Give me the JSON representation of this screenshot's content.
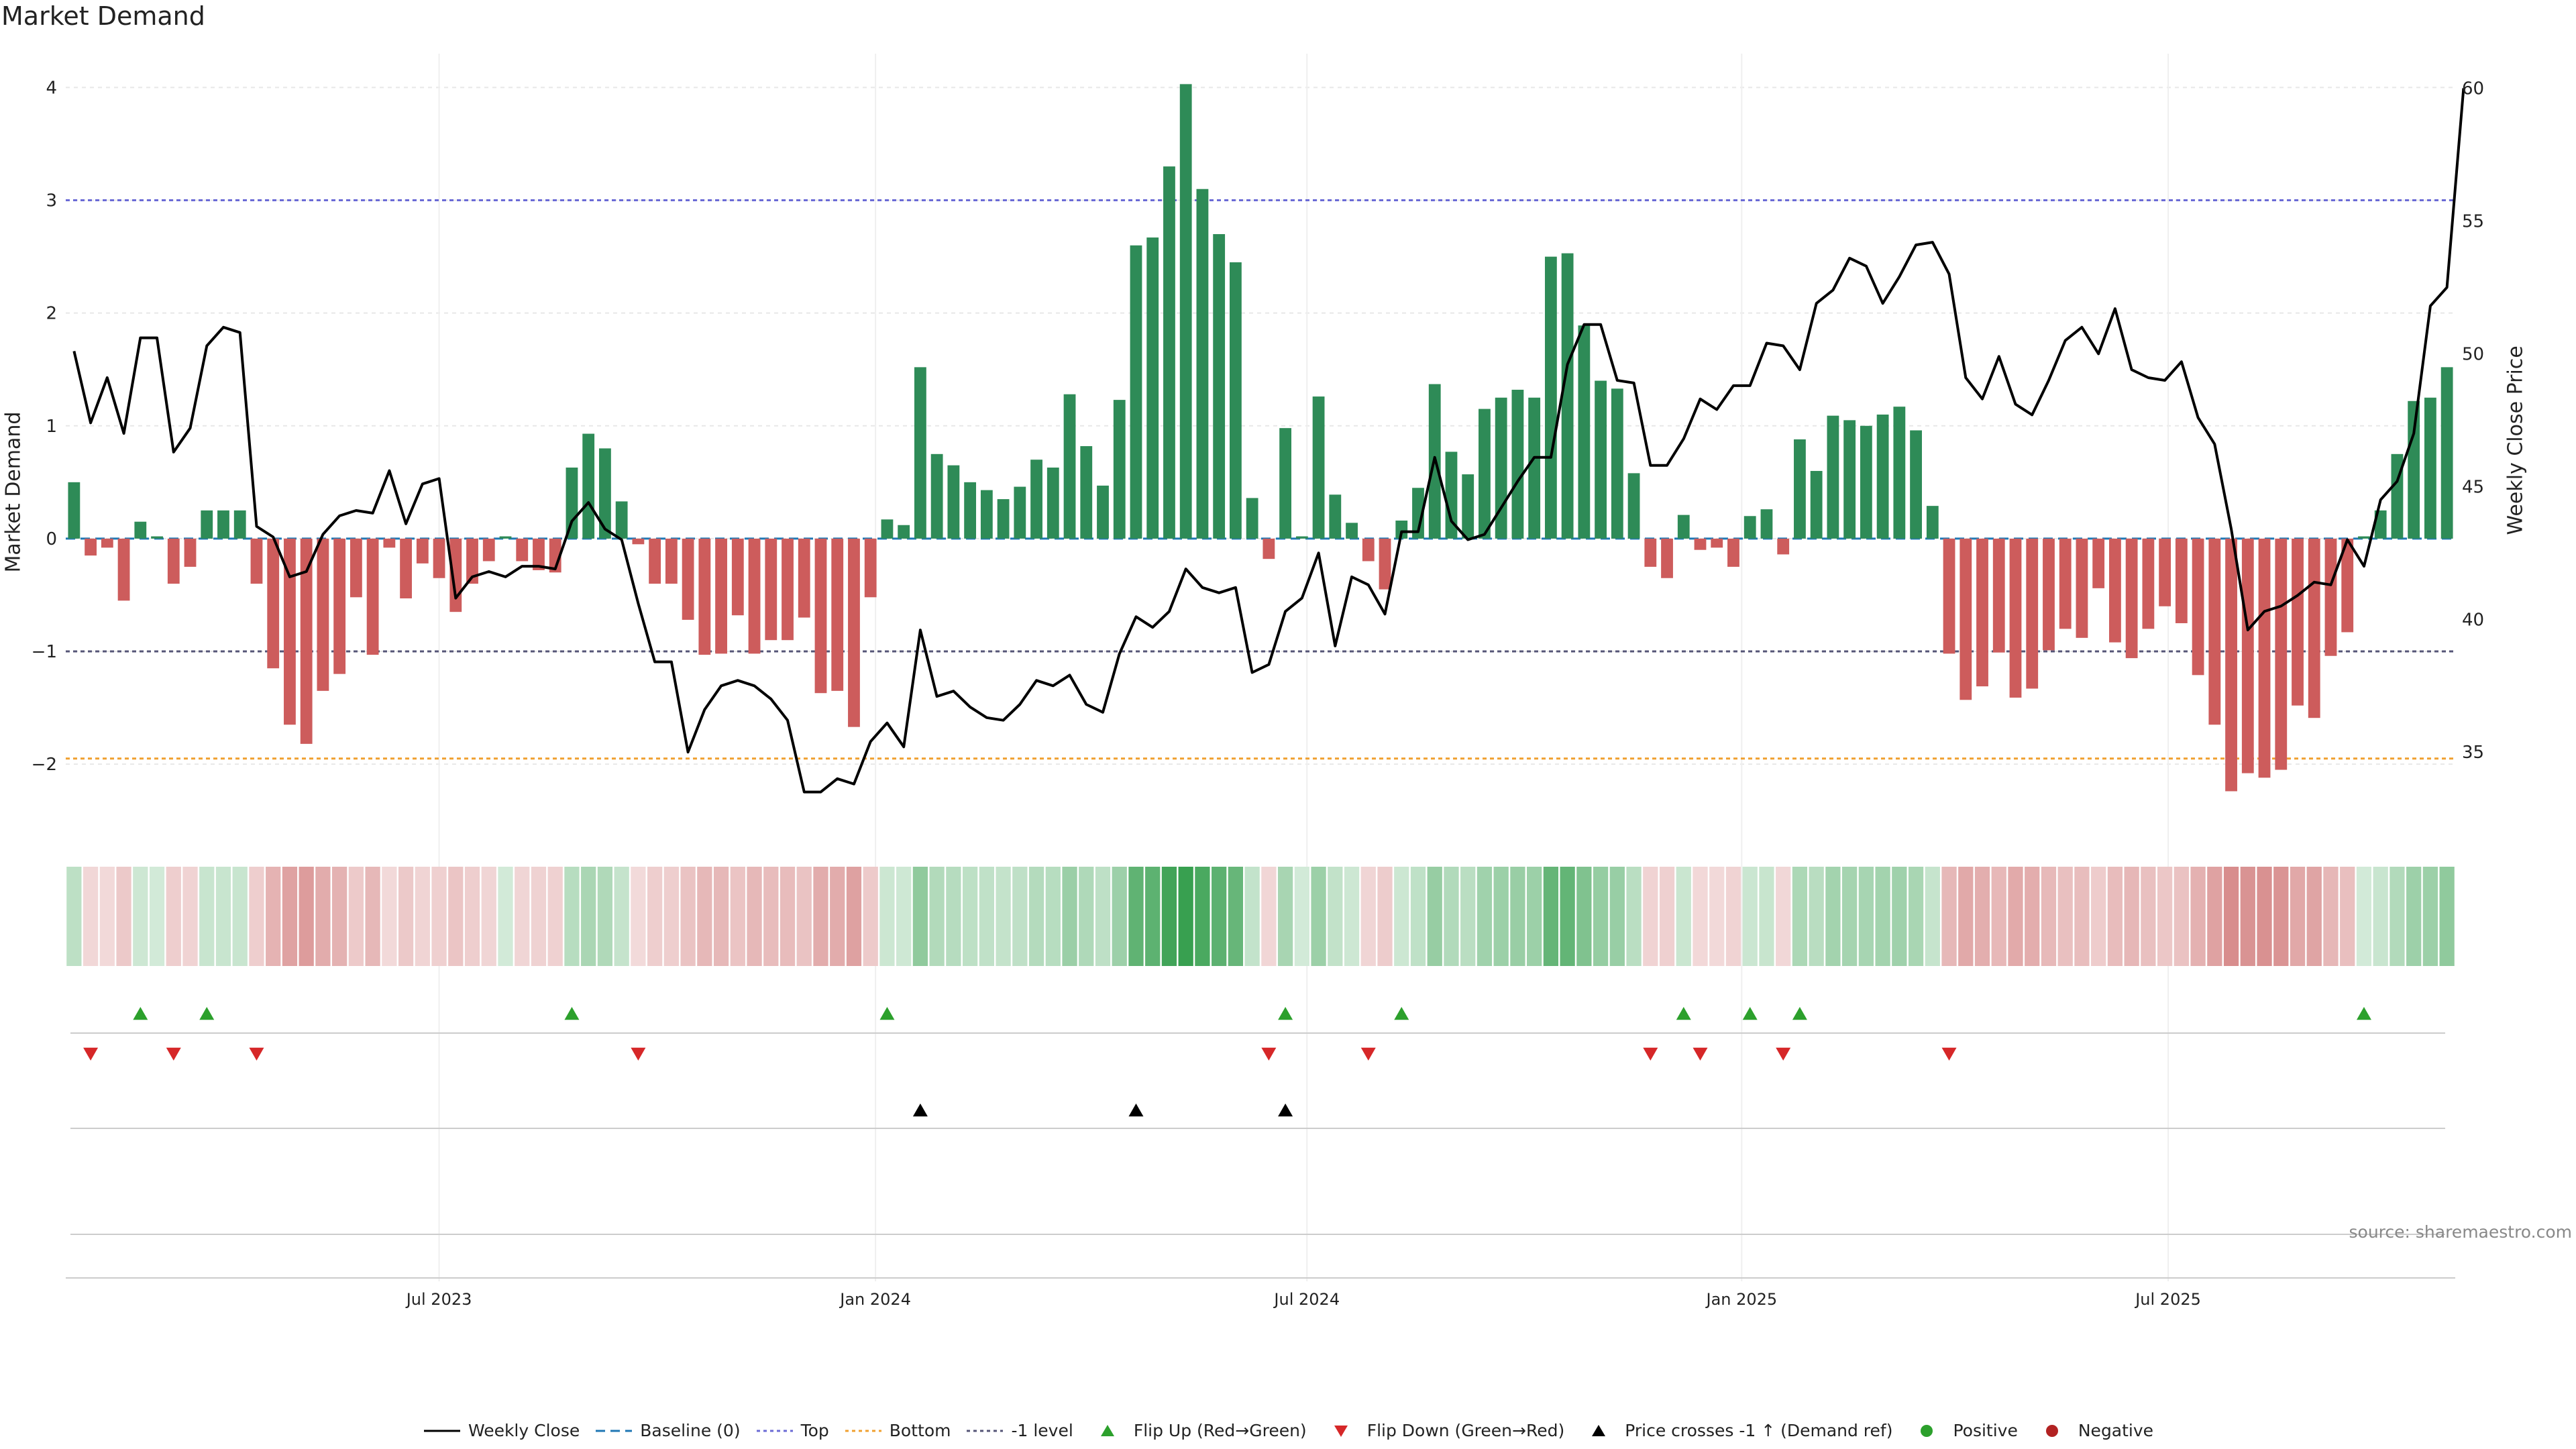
{
  "title": "Market Demand",
  "source": "source: sharemaestro.com",
  "colors": {
    "positive": "#2e8b57",
    "negative": "#cd5c5c",
    "price": "#000000",
    "top": "#6b6bd6",
    "bottom": "#f0a030",
    "minus1": "#555577",
    "baseline": "#1f77b4",
    "flip_up": "#2ca02c",
    "flip_down": "#d62728",
    "cross": "#000000",
    "dot_positive": "#2ca02c",
    "dot_negative": "#b22222"
  },
  "chart_data": {
    "type": "bar",
    "title": "Market Demand",
    "ylabel": "Market Demand",
    "y2label": "Weekly Close Price",
    "ylim": [
      -2.6,
      4.3
    ],
    "y2lim": [
      32,
      61.3
    ],
    "yticks": [
      "4",
      "3",
      "2",
      "1",
      "0",
      "−1",
      "−2"
    ],
    "y2ticks": [
      "60",
      "55",
      "50",
      "45",
      "40",
      "35"
    ],
    "x_ticks": [
      "Jul 2023",
      "Jan 2024",
      "Jul 2024",
      "Jan 2025",
      "Jul 2025"
    ],
    "x_tick_index": [
      22,
      48.3,
      74.3,
      100.5,
      126.2
    ],
    "reference_lines": {
      "top": 3.0,
      "minus1": -1.0,
      "bottom": -1.95,
      "baseline": 0
    },
    "demand": [
      0.5,
      -0.15,
      -0.08,
      -0.55,
      0.15,
      0.02,
      -0.4,
      -0.25,
      0.25,
      0.25,
      0.25,
      -0.4,
      -1.15,
      -1.65,
      -1.82,
      -1.35,
      -1.2,
      -0.52,
      -1.03,
      -0.08,
      -0.53,
      -0.22,
      -0.35,
      -0.65,
      -0.4,
      -0.2,
      0.02,
      -0.2,
      -0.28,
      -0.3,
      0.63,
      0.93,
      0.8,
      0.33,
      -0.05,
      -0.4,
      -0.4,
      -0.72,
      -1.03,
      -1.02,
      -0.68,
      -1.02,
      -0.9,
      -0.9,
      -0.7,
      -1.37,
      -1.35,
      -1.67,
      -0.52,
      0.17,
      0.12,
      1.52,
      0.75,
      0.65,
      0.5,
      0.43,
      0.35,
      0.46,
      0.7,
      0.63,
      1.28,
      0.82,
      0.47,
      1.23,
      2.6,
      2.67,
      3.3,
      4.03,
      3.1,
      2.7,
      2.45,
      0.36,
      -0.18,
      0.98,
      0.02,
      1.26,
      0.39,
      0.14,
      -0.2,
      -0.45,
      0.16,
      0.45,
      1.37,
      0.77,
      0.57,
      1.15,
      1.25,
      1.32,
      1.25,
      2.5,
      2.53,
      1.89,
      1.4,
      1.33,
      0.58,
      -0.25,
      -0.35,
      0.21,
      -0.1,
      -0.08,
      -0.25,
      0.2,
      0.26,
      -0.14,
      0.88,
      0.6,
      1.09,
      1.05,
      1.0,
      1.1,
      1.17,
      0.96,
      0.29,
      -1.02,
      -1.43,
      -1.31,
      -1.01,
      -1.41,
      -1.33,
      -0.99,
      -0.8,
      -0.88,
      -0.44,
      -0.92,
      -1.06,
      -0.8,
      -0.6,
      -0.75,
      -1.21,
      -1.65,
      -2.24,
      -2.08,
      -2.12,
      -2.05,
      -1.48,
      -1.59,
      -1.04,
      -0.83,
      0.02,
      0.25,
      0.75,
      1.22,
      1.25,
      1.52
    ],
    "price": [
      50.1,
      47.4,
      49.1,
      47.0,
      50.6,
      50.6,
      46.3,
      47.2,
      50.3,
      51.0,
      50.8,
      43.5,
      43.1,
      41.6,
      41.8,
      43.2,
      43.9,
      44.1,
      44.0,
      45.6,
      43.6,
      45.1,
      45.3,
      40.8,
      41.6,
      41.8,
      41.6,
      42.0,
      42.0,
      41.9,
      43.7,
      44.4,
      43.4,
      43.0,
      40.6,
      38.4,
      38.4,
      35.0,
      36.6,
      37.5,
      37.7,
      37.5,
      37.0,
      36.2,
      33.5,
      33.5,
      34.0,
      33.8,
      35.4,
      36.1,
      35.2,
      39.6,
      37.1,
      37.3,
      36.7,
      36.3,
      36.2,
      36.8,
      37.7,
      37.5,
      37.9,
      36.8,
      36.5,
      38.7,
      40.1,
      39.7,
      40.3,
      41.9,
      41.2,
      41.0,
      41.2,
      38.0,
      38.3,
      40.3,
      40.8,
      42.5,
      39.0,
      41.6,
      41.3,
      40.2,
      43.3,
      43.3,
      46.1,
      43.7,
      43.0,
      43.2,
      44.2,
      45.2,
      46.1,
      46.1,
      49.6,
      51.1,
      51.1,
      49.0,
      48.9,
      45.8,
      45.8,
      46.8,
      48.3,
      47.9,
      48.8,
      48.8,
      50.4,
      50.3,
      49.4,
      51.9,
      52.4,
      53.6,
      53.3,
      51.9,
      52.9,
      54.1,
      54.2,
      53.0,
      49.1,
      48.3,
      49.9,
      48.1,
      47.7,
      49.0,
      50.5,
      51.0,
      50.0,
      51.7,
      49.4,
      49.1,
      49.0,
      49.7,
      47.6,
      46.6,
      43.4,
      39.6,
      40.3,
      40.5,
      40.9,
      41.4,
      41.3,
      43.0,
      42.0,
      44.5,
      45.2,
      47.0,
      51.8,
      52.5,
      60.0
    ],
    "flip_up_index": [
      4,
      8,
      30,
      49,
      73,
      80,
      97,
      101,
      104,
      138
    ],
    "flip_down_index": [
      1,
      6,
      11,
      34,
      72,
      78,
      95,
      98,
      103,
      113
    ],
    "price_cross_index": [
      51,
      64,
      73
    ],
    "legend": [
      {
        "key": "weekly_close",
        "label": "Weekly Close"
      },
      {
        "key": "baseline",
        "label": "Baseline (0)"
      },
      {
        "key": "top",
        "label": "Top"
      },
      {
        "key": "bottom",
        "label": "Bottom"
      },
      {
        "key": "minus1",
        "label": "-1 level"
      },
      {
        "key": "flip_up",
        "label": "Flip Up (Red→Green)"
      },
      {
        "key": "flip_down",
        "label": "Flip Down (Green→Red)"
      },
      {
        "key": "cross",
        "label": "Price crosses -1 ↑ (Demand ref)"
      },
      {
        "key": "positive",
        "label": "Positive"
      },
      {
        "key": "negative",
        "label": "Negative"
      }
    ]
  }
}
